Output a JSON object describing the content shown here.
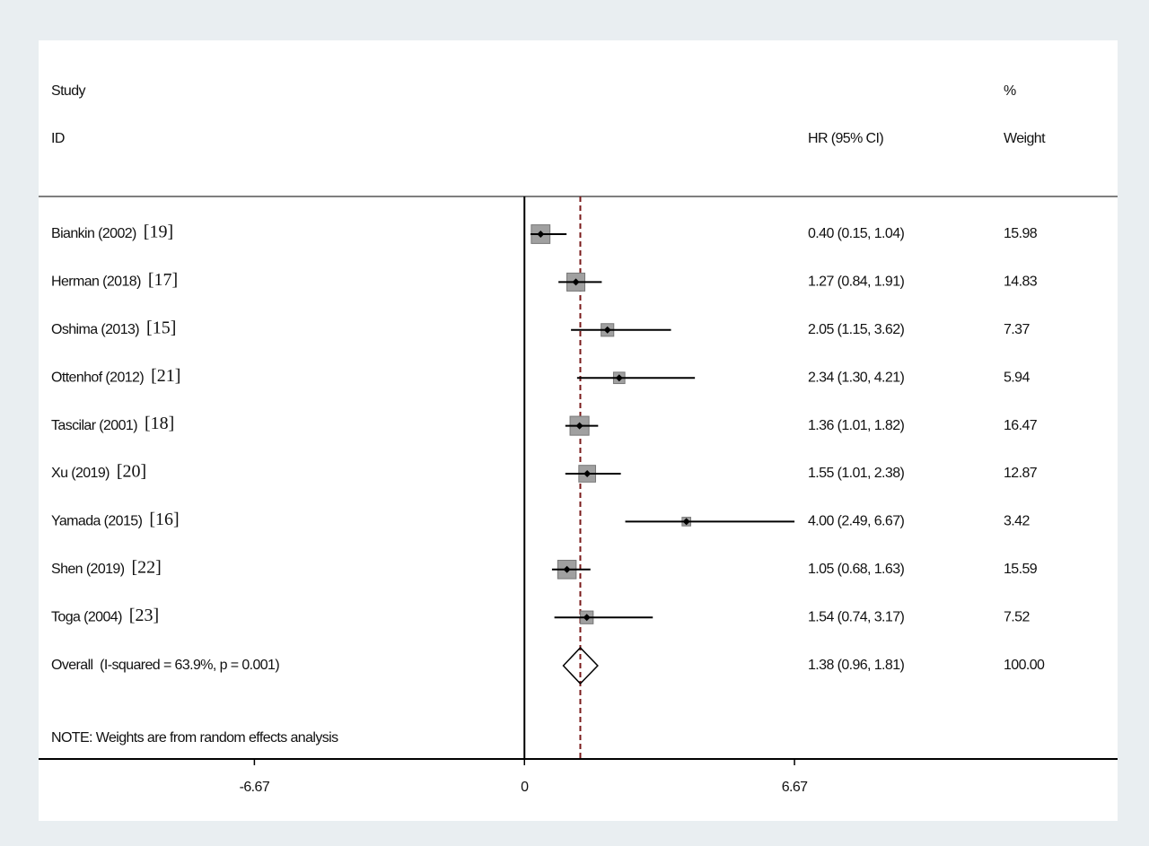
{
  "chart_data": {
    "type": "forest",
    "header": {
      "study": "Study",
      "id": "ID",
      "estimate": "HR (95% CI)",
      "pct": "%",
      "weight": "Weight"
    },
    "categories": [
      "Biankin (2002)",
      "Herman (2018)",
      "Oshima (2013)",
      "Ottenhof (2012)",
      "Tascilar (2001)",
      "Xu (2019)",
      "Yamada (2015)",
      "Shen (2019)",
      "Toga (2004)"
    ],
    "refs": [
      "[19]",
      "[17]",
      "[15]",
      "[21]",
      "[18]",
      "[20]",
      "[16]",
      "[22]",
      "[23]"
    ],
    "values": [
      0.4,
      1.27,
      2.05,
      2.34,
      1.36,
      1.55,
      4.0,
      1.05,
      1.54
    ],
    "lower": [
      0.15,
      0.84,
      1.15,
      1.3,
      1.01,
      1.01,
      2.49,
      0.68,
      0.74
    ],
    "upper": [
      1.04,
      1.91,
      3.62,
      4.21,
      1.82,
      2.38,
      6.67,
      1.63,
      3.17
    ],
    "value_labels": [
      "0.40 (0.15, 1.04)",
      "1.27 (0.84, 1.91)",
      "2.05 (1.15, 3.62)",
      "2.34 (1.30, 4.21)",
      "1.36 (1.01, 1.82)",
      "1.55 (1.01, 2.38)",
      "4.00 (2.49, 6.67)",
      "1.05 (0.68, 1.63)",
      "1.54 (0.74, 3.17)"
    ],
    "weights": [
      15.98,
      14.83,
      7.37,
      5.94,
      16.47,
      12.87,
      3.42,
      15.59,
      7.52
    ],
    "overall": {
      "label": "Overall  (I-squared = 63.9%, p = 0.001)",
      "value": 1.38,
      "lower": 0.96,
      "upper": 1.81,
      "value_label": "1.38 (0.96, 1.81)",
      "weight": {
        "value": 100,
        "label": "100.00"
      }
    },
    "note": "NOTE: Weights are from random effects analysis",
    "xlim": [
      -12,
      14.65
    ],
    "xticks": [
      -6.67,
      0,
      6.67
    ],
    "box_color": "#a0a0a0",
    "line_color": "#000000",
    "reference_color": "#7a1a1a"
  }
}
